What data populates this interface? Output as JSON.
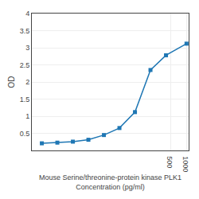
{
  "chart_data": {
    "type": "line",
    "marker": "square",
    "x": [
      1.563,
      3.125,
      6.25,
      12.5,
      25,
      50,
      100,
      200,
      400,
      1000
    ],
    "values": [
      0.208,
      0.228,
      0.257,
      0.312,
      0.45,
      0.655,
      1.12,
      2.35,
      2.78,
      3.12
    ],
    "x_label": "Mouse Serine/threonine-protein kinase PLK1\nConcentration (pg/ml)",
    "y_label": "OD",
    "log": "x",
    "xlim": [
      1.0,
      1100
    ],
    "xticks": [
      500,
      1000
    ],
    "ylim": [
      0,
      4
    ],
    "yticks": [
      0.5,
      1,
      1.5,
      2,
      2.5,
      3,
      3.5,
      4
    ],
    "grid": true
  }
}
